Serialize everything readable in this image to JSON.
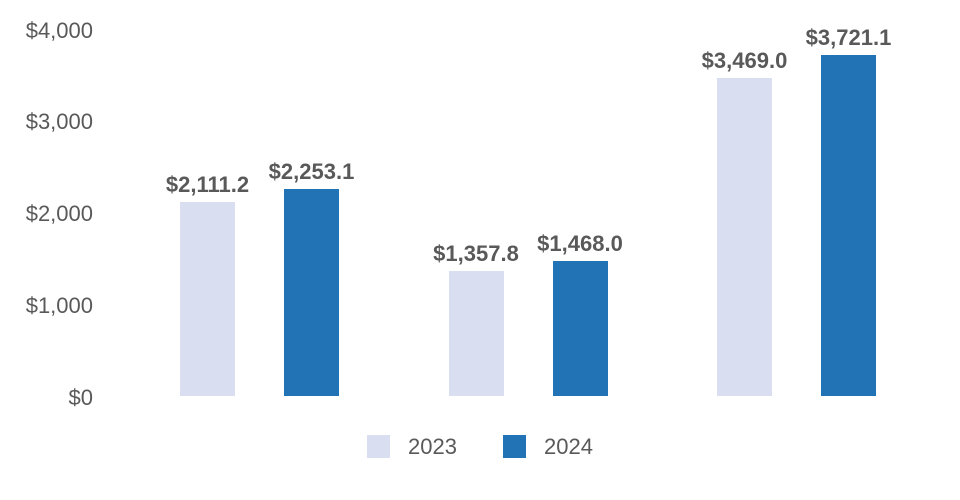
{
  "chart_data": {
    "type": "bar",
    "categories": [
      "",
      "",
      ""
    ],
    "series": [
      {
        "name": "2023",
        "color": "#D9DEF0",
        "values": [
          2111.2,
          1357.8,
          3469.0
        ],
        "labels": [
          "$2,111.2",
          "$1,357.8",
          "$3,469.0"
        ]
      },
      {
        "name": "2024",
        "color": "#2173B6",
        "values": [
          2253.1,
          1468.0,
          3721.1
        ],
        "labels": [
          "$2,253.1",
          "$1,468.0",
          "$3,721.1"
        ]
      }
    ],
    "y_ticks": [
      {
        "label": "$0",
        "value": 0
      },
      {
        "label": "$1,000",
        "value": 1000
      },
      {
        "label": "$2,000",
        "value": 2000
      },
      {
        "label": "$3,000",
        "value": 3000
      },
      {
        "label": "$4,000",
        "value": 4000
      }
    ],
    "ylim": [
      0,
      4000
    ],
    "title": "",
    "xlabel": "",
    "ylabel": "",
    "grid": false,
    "legend_position": "bottom",
    "text_color": "#595959",
    "background_color": "#FFFFFF"
  }
}
